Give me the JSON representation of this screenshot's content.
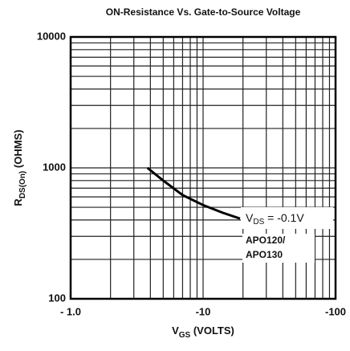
{
  "chart_data": {
    "type": "line",
    "title": "ON-Resistance Vs. Gate-to-Source Voltage",
    "x_label": [
      "V",
      "GS",
      " (VOLTS)"
    ],
    "y_label": [
      "R",
      "DS(On)",
      " (OHMS)"
    ],
    "annotation": [
      "V",
      "DS",
      " = -0.1V"
    ],
    "part_labels": [
      "APO120/",
      "APO130"
    ],
    "log_x": true,
    "log_y": true,
    "grid": true,
    "xlim": [
      -1,
      -100
    ],
    "ylim": [
      100,
      10000
    ],
    "xticks": [
      {
        "value": -1,
        "label": "- 1.0"
      },
      {
        "value": -10,
        "label": "-10"
      },
      {
        "value": -100,
        "label": "-100"
      }
    ],
    "yticks": [
      100,
      1000,
      10000
    ],
    "xminorticks": [
      -2,
      -3,
      -4,
      -5,
      -6,
      -7,
      -8,
      -9,
      -20,
      -30,
      -40,
      -50,
      -60,
      -70,
      -80,
      -90
    ],
    "yminorticks": [
      200,
      300,
      400,
      500,
      600,
      700,
      800,
      900,
      2000,
      3000,
      4000,
      5000,
      6000,
      7000,
      8000,
      9000
    ],
    "series": [
      {
        "color": "#000000",
        "x": [
          -3.8,
          -5,
          -7,
          -10,
          -14,
          -19
        ],
        "values": [
          1000,
          800,
          620,
          520,
          455,
          410
        ]
      }
    ]
  }
}
